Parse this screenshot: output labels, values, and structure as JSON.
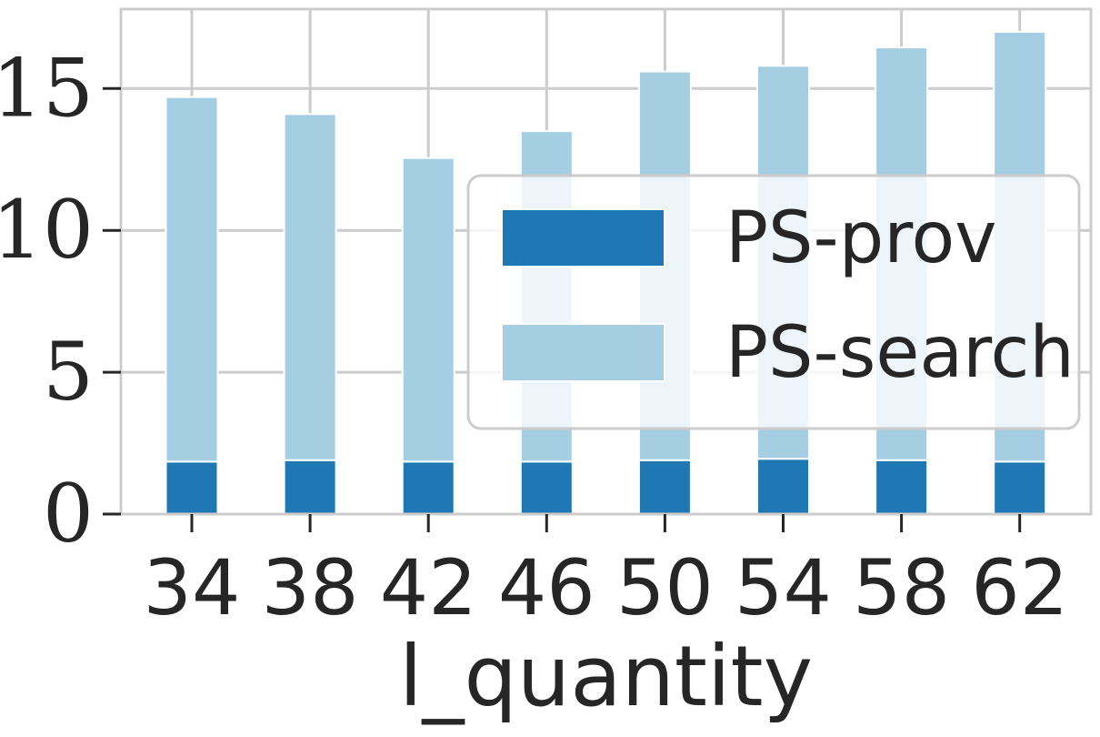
{
  "chart_data": {
    "type": "bar",
    "stacked": true,
    "title": "",
    "xlabel": "l_quantity",
    "ylabel": "",
    "categories": [
      "34",
      "38",
      "42",
      "46",
      "50",
      "54",
      "58",
      "62"
    ],
    "series": [
      {
        "name": "PS-prov",
        "color": "#1f77b4",
        "values": [
          1.85,
          1.9,
          1.85,
          1.85,
          1.9,
          1.95,
          1.9,
          1.85
        ]
      },
      {
        "name": "PS-search",
        "color": "#a6cee3",
        "values": [
          12.85,
          12.2,
          10.7,
          11.65,
          13.7,
          13.85,
          14.55,
          15.15
        ]
      }
    ],
    "ylim": [
      0,
      17.8
    ],
    "yticks": [
      "0",
      "5",
      "10",
      "15"
    ],
    "grid": true,
    "legend_position": "right"
  }
}
